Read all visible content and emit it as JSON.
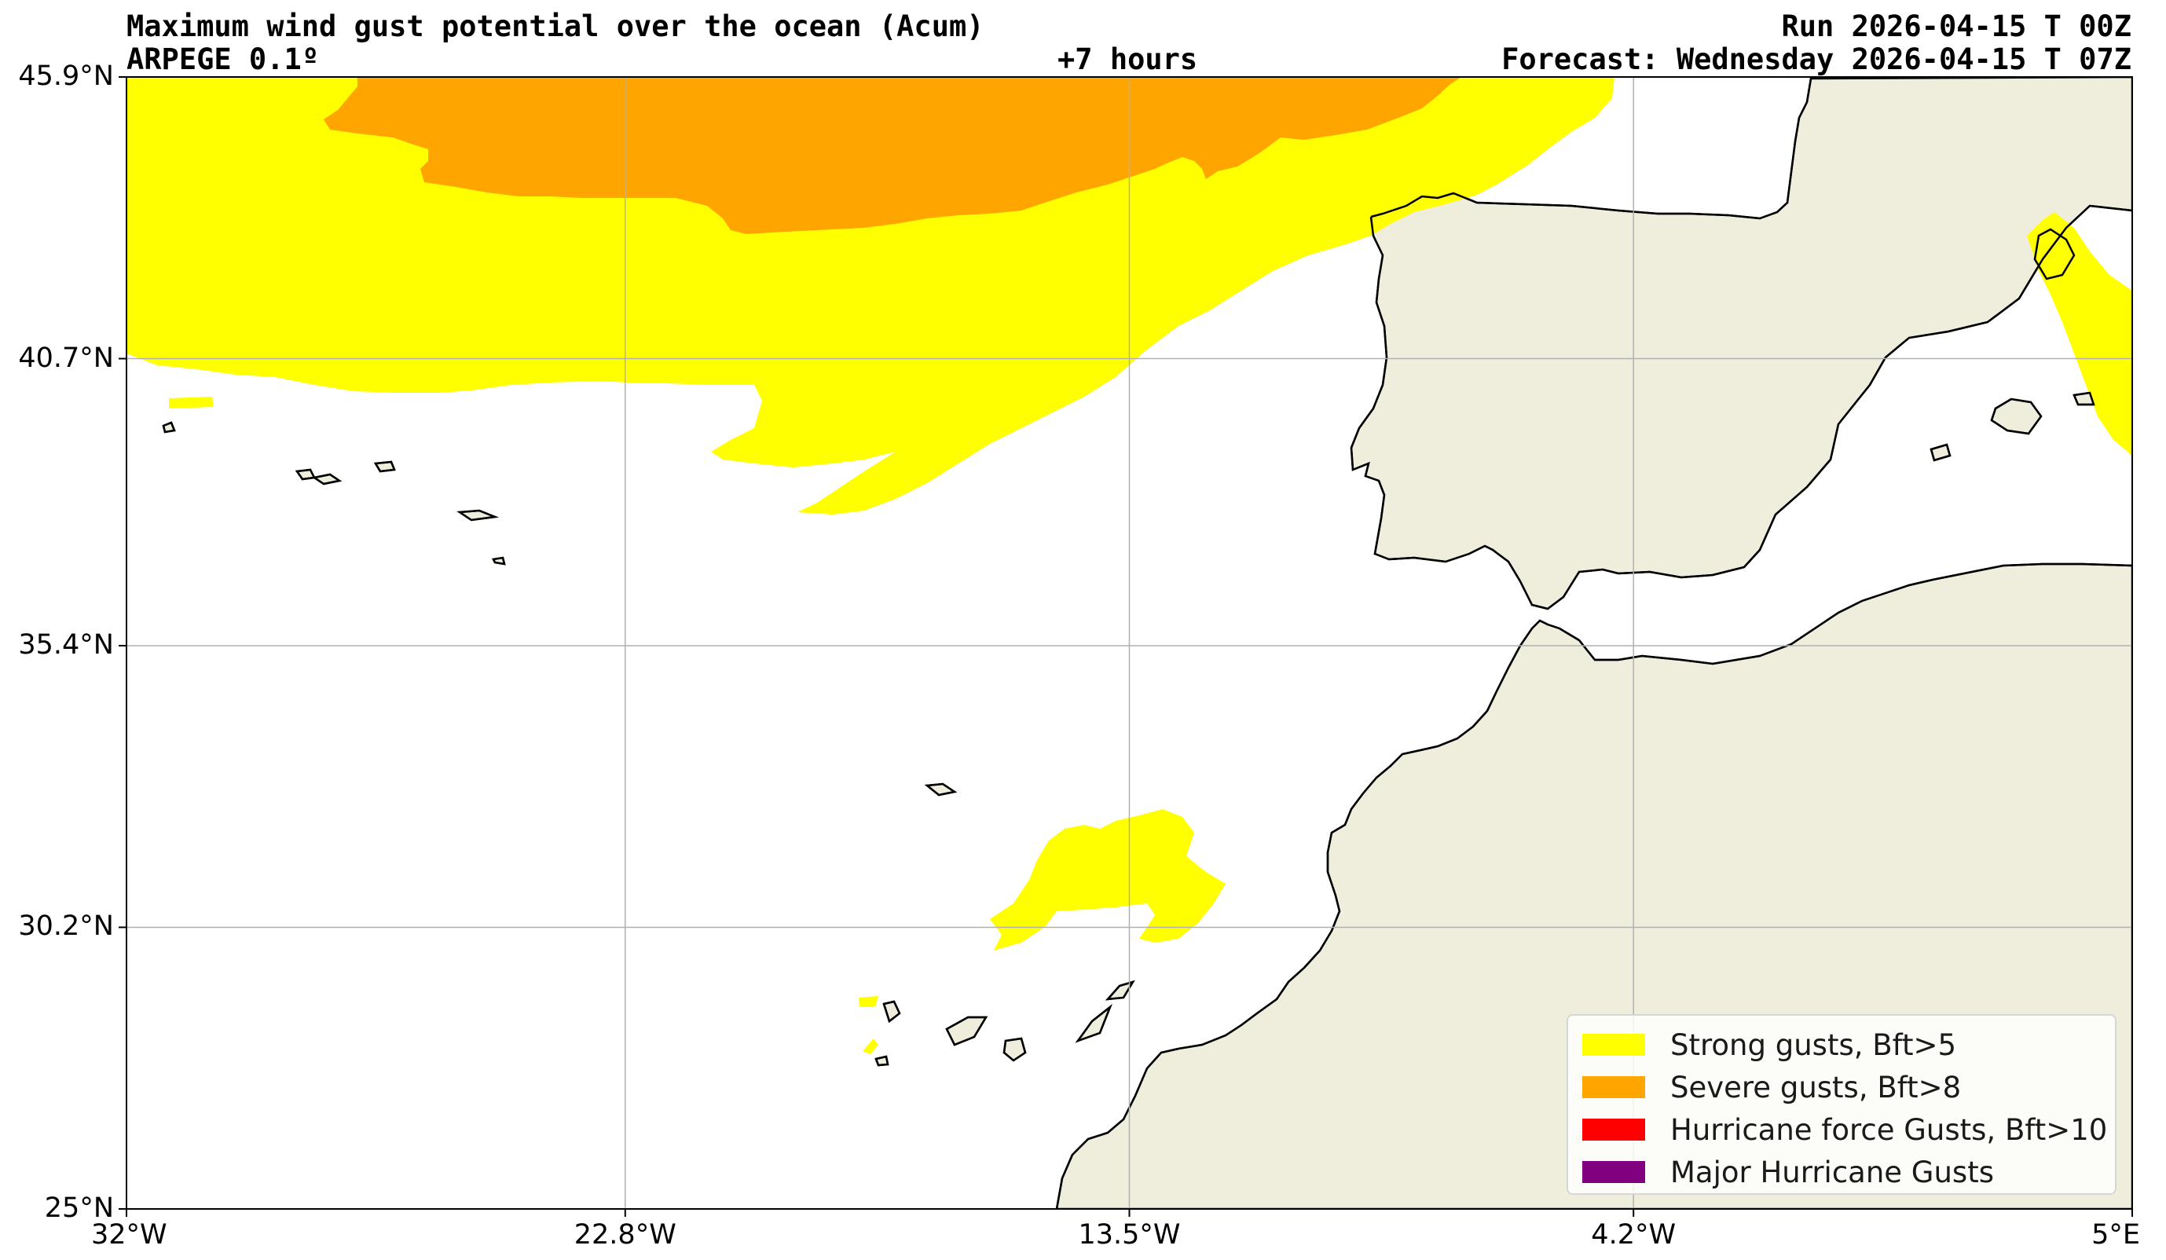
{
  "header": {
    "title": "Maximum wind gust potential over the ocean (Acum)",
    "model": "ARPEGE 0.1º",
    "lead": "+7 hours",
    "run": "Run 2026-04-15 T 00Z",
    "forecast": "Forecast: Wednesday 2026-04-15 T 07Z"
  },
  "map": {
    "extent": {
      "lon": [
        -32,
        5
      ],
      "lat": [
        25,
        45.9
      ]
    },
    "colors": {
      "ocean": "#ffffff",
      "land": "#efeedc",
      "coast": "#000000",
      "grid": "#b0b0b0"
    },
    "lat_ticks": [
      {
        "value": 45.9,
        "label": "45.9°N"
      },
      {
        "value": 40.7,
        "label": "40.7°N"
      },
      {
        "value": 35.4,
        "label": "35.4°N"
      },
      {
        "value": 30.2,
        "label": "30.2°N"
      },
      {
        "value": 25.0,
        "label": "25°N"
      }
    ],
    "lon_ticks": [
      {
        "value": -32,
        "label": "32°W"
      },
      {
        "value": -22.8,
        "label": "22.8°W"
      },
      {
        "value": -13.5,
        "label": "13.5°W"
      },
      {
        "value": -4.2,
        "label": "4.2°W"
      },
      {
        "value": 5,
        "label": "5°E"
      }
    ]
  },
  "legend": {
    "items": [
      {
        "label": "Strong gusts, Bft>5",
        "color": "#ffff00"
      },
      {
        "label": "Severe gusts, Bft>8",
        "color": "#ffa500"
      },
      {
        "label": "Hurricane force Gusts, Bft>10",
        "color": "#ff0000"
      },
      {
        "label": "Major Hurricane Gusts",
        "color": "#800080"
      }
    ]
  }
}
